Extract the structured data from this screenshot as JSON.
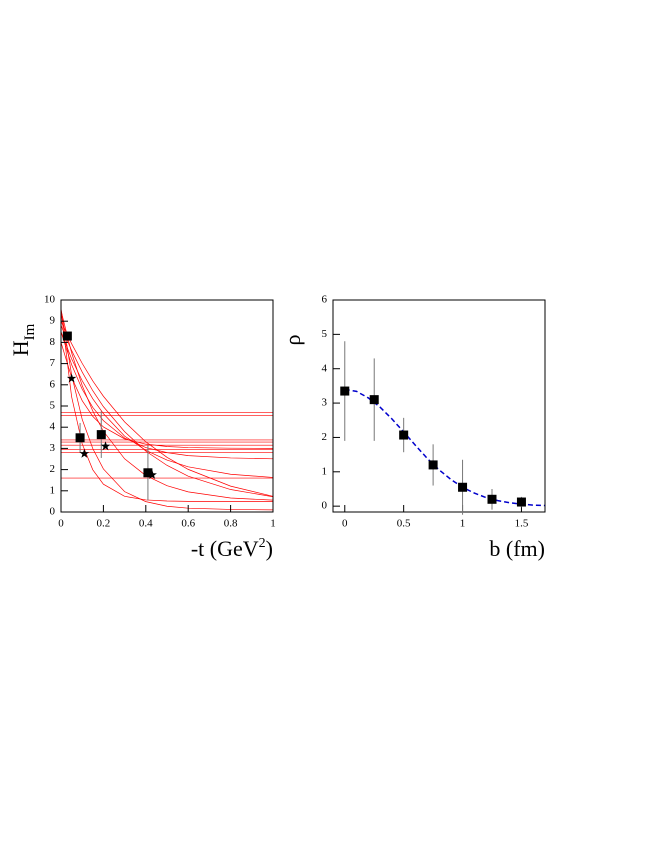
{
  "chart_data": [
    {
      "type": "line",
      "ylabel": "H",
      "ylabel_subscript": "Im",
      "xlabel": [
        "-t (GeV",
        "2",
        ")"
      ],
      "xlim": [
        0,
        1
      ],
      "ylim": [
        0,
        10
      ],
      "xticks": [
        0,
        0.2,
        0.4,
        0.6,
        0.8,
        1
      ],
      "yticks": [
        0,
        1,
        2,
        3,
        4,
        5,
        6,
        7,
        8,
        9,
        10
      ],
      "x": [
        0,
        0.05,
        0.1,
        0.15,
        0.2,
        0.3,
        0.4,
        0.5,
        0.6,
        0.8,
        1.0
      ],
      "series": [
        {
          "color": "#ff0000",
          "values": [
            9.6,
            6.47,
            4.37,
            2.99,
            2.03,
            0.96,
            0.49,
            0.27,
            0.18,
            0.12,
            0.1
          ]
        },
        {
          "color": "#ff0000",
          "values": [
            9.5,
            7.51,
            5.96,
            4.76,
            3.81,
            2.51,
            1.72,
            1.24,
            0.95,
            0.66,
            0.56
          ]
        },
        {
          "color": "#ff0000",
          "values": [
            8.8,
            7.62,
            6.6,
            5.72,
            4.97,
            3.79,
            2.87,
            2.2,
            1.69,
            1.06,
            0.72
          ]
        },
        {
          "color": "#ff0000",
          "values": [
            8.5,
            7.23,
            6.19,
            5.34,
            4.64,
            3.58,
            2.91,
            2.45,
            2.13,
            1.78,
            1.63
          ]
        },
        {
          "color": "#ff0000",
          "values": [
            9.5,
            5.44,
            3.21,
            1.99,
            1.31,
            0.74,
            0.57,
            0.52,
            0.5,
            0.5,
            0.5
          ]
        },
        {
          "color": "#ff0000",
          "values": [
            8.5,
            6.95,
            5.79,
            4.93,
            4.31,
            3.49,
            3.04,
            2.8,
            2.66,
            2.55,
            2.51
          ]
        },
        {
          "color": "#ff0000",
          "values": [
            9,
            7.94,
            7.01,
            6.18,
            5.46,
            4.25,
            3.31,
            2.58,
            2.01,
            1.22,
            0.74
          ]
        },
        {
          "color": "#ff0000",
          "values": [
            8,
            6.35,
            5.25,
            4.51,
            4.01,
            3.45,
            3.2,
            3.09,
            3.04,
            3.01,
            3.0
          ]
        }
      ],
      "hlines": {
        "color": "#ff0000",
        "values": [
          4.7,
          4.55,
          3.4,
          3.3,
          3.15,
          2.95,
          2.8,
          1.6
        ]
      },
      "points": [
        {
          "marker": "square",
          "color": "#000000",
          "x": [
            0.03,
            0.09,
            0.19,
            0.41
          ],
          "values": [
            8.3,
            3.5,
            3.65,
            1.85
          ],
          "errors": [
            0.2,
            0.7,
            1.1,
            1.3
          ]
        },
        {
          "marker": "star",
          "color": "#000000",
          "x": [
            0.05,
            0.11,
            0.21,
            0.43
          ],
          "values": [
            6.3,
            2.75,
            3.1,
            1.75
          ]
        }
      ]
    },
    {
      "type": "line",
      "ylabel": "ρ",
      "xlabel": [
        "b (fm)"
      ],
      "xlim": [
        -0.1,
        1.7
      ],
      "ylim": [
        -0.17,
        6
      ],
      "xticks": [
        0,
        0.5,
        1,
        1.5
      ],
      "yticks": [
        0,
        1,
        2,
        3,
        4,
        5,
        6
      ],
      "series": [
        {
          "color": "#0000cc",
          "dash": true,
          "x": [
            0,
            0.1,
            0.2,
            0.3,
            0.4,
            0.5,
            0.6,
            0.7,
            0.8,
            0.9,
            1.0,
            1.1,
            1.2,
            1.3,
            1.4,
            1.5,
            1.6,
            1.7
          ],
          "values": [
            3.4,
            3.34,
            3.15,
            2.88,
            2.54,
            2.16,
            1.77,
            1.39,
            1.06,
            0.78,
            0.55,
            0.38,
            0.25,
            0.16,
            0.1,
            0.06,
            0.03,
            0.02
          ]
        }
      ],
      "points": [
        {
          "marker": "square",
          "color": "#000000",
          "x": [
            0,
            0.25,
            0.5,
            0.75,
            1,
            1.25,
            1.5
          ],
          "values": [
            3.35,
            3.1,
            2.07,
            1.2,
            0.55,
            0.2,
            0.12
          ],
          "errors": [
            1.45,
            1.2,
            0.5,
            0.6,
            0.8,
            0.3,
            0.15
          ]
        }
      ]
    }
  ]
}
